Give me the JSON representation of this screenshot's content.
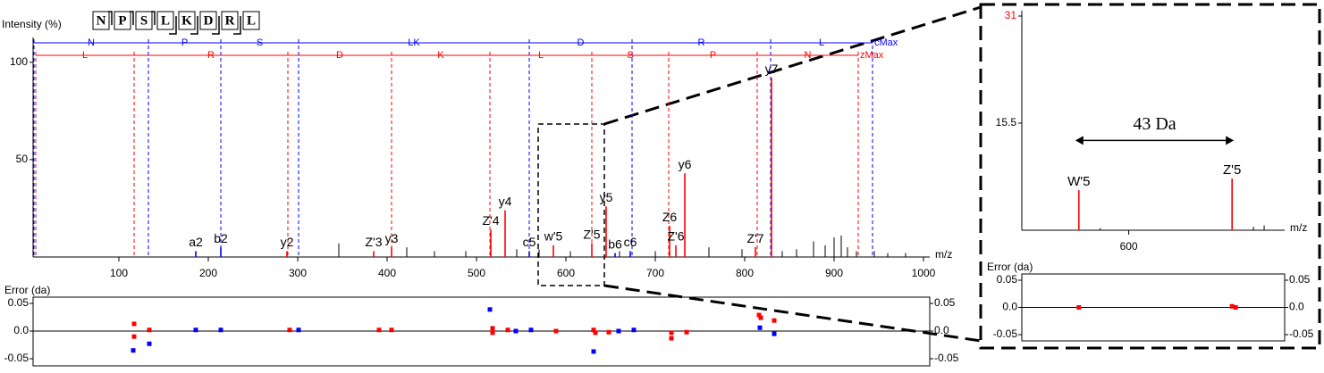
{
  "sequence": [
    "N",
    "P",
    "S",
    "L",
    "K",
    "D",
    "R",
    "L"
  ],
  "chart_data": [
    {
      "type": "stem",
      "y_label": "Intensity (%)",
      "x_label": "m/z",
      "xlim": [
        4,
        1004
      ],
      "ylim": [
        0,
        110
      ],
      "xticks": [
        100,
        200,
        300,
        400,
        500,
        600,
        700,
        800,
        900,
        1000
      ],
      "yticks": [
        50,
        100
      ],
      "x": [
        186,
        214,
        288,
        385,
        405,
        516,
        532,
        559,
        586,
        629,
        645,
        655,
        672,
        716,
        723,
        733,
        812,
        830,
        346,
        422,
        453,
        488,
        545,
        570,
        605,
        660,
        700,
        760,
        797,
        842,
        858,
        877,
        890,
        900,
        908,
        915,
        925,
        945,
        960,
        980
      ],
      "values": [
        3,
        5,
        3,
        3,
        5,
        14,
        24,
        3,
        6,
        7,
        26,
        2,
        3,
        16,
        6,
        43,
        5,
        92,
        7,
        5,
        3,
        3,
        4,
        4,
        3,
        3,
        3,
        5,
        4,
        3,
        4,
        8,
        6,
        10,
        11,
        5,
        3,
        3,
        2,
        2
      ],
      "labels": [
        "a2",
        "b2",
        "y2",
        "Z'3",
        "y3",
        "Z'4",
        "y4",
        "c5",
        "w'5",
        "Z'5",
        "y5",
        "b6",
        "c6",
        "Z6",
        "Z'6",
        "y6",
        "Z'7",
        "y7",
        null,
        null,
        null,
        null,
        null,
        null,
        null,
        null,
        null,
        null,
        null,
        null,
        null,
        null,
        null,
        null,
        null,
        null,
        null,
        null,
        null,
        null
      ],
      "colors": [
        "#0000ff",
        "#0000ff",
        "#ff0000",
        "#ff0000",
        "#ff0000",
        "#ff0000",
        "#ff0000",
        "#0000ff",
        "#ff0000",
        "#ff0000",
        "#ff0000",
        "#0000ff",
        "#0000ff",
        "#ff0000",
        "#ff0000",
        "#ff0000",
        "#ff0000",
        "#ff0000",
        "#000000",
        "#000000",
        "#000000",
        "#000000",
        "#000000",
        "#000000",
        "#000000",
        "#000000",
        "#000000",
        "#000000",
        "#000000",
        "#000000",
        "#000000",
        "#000000",
        "#000000",
        "#000000",
        "#000000",
        "#000000",
        "#000000",
        "#000000",
        "#000000",
        "#000000"
      ],
      "ladders": [
        {
          "color": "#0000ff",
          "cuts": [
            5,
            133,
            214,
            301,
            559,
            674,
            829,
            943
          ],
          "labels": [
            "N",
            "P",
            "S",
            "LK",
            "D",
            "R",
            "L",
            "cMax"
          ]
        },
        {
          "color": "#ff0000",
          "cuts": [
            7,
            117,
            289,
            405,
            515,
            629,
            715,
            814,
            927
          ],
          "labels": [
            "L",
            "R",
            "D",
            "K",
            "L",
            "S",
            "P",
            "N",
            "zMax"
          ]
        }
      ]
    },
    {
      "type": "scatter",
      "y_label": "Error (da)",
      "xlim": [
        4,
        1004
      ],
      "ylim": [
        -0.05,
        0.05
      ],
      "yticks": [
        -0.05,
        {
          "value": 0,
          "label": "0.0"
        },
        0.05
      ],
      "series": [
        {
          "color": "#0000ff",
          "x": [
            116,
            134,
            186,
            214,
            301,
            515,
            544,
            561,
            631,
            659,
            676,
            817,
            833
          ],
          "values": [
            -0.035,
            -0.023,
            0.002,
            0.002,
            0.002,
            0.039,
            0,
            0.002,
            -0.037,
            0,
            0.002,
            0.006,
            -0.005
          ]
        },
        {
          "color": "#ff0000",
          "x": [
            117,
            117,
            134,
            291,
            391,
            405,
            518,
            518,
            535,
            589,
            631,
            633,
            648,
            718,
            718,
            735,
            816,
            818,
            833
          ],
          "values": [
            0.013,
            -0.01,
            0.002,
            0.002,
            0.002,
            0.002,
            0.005,
            -0.003,
            0.002,
            0,
            0.002,
            -0.003,
            -0.002,
            -0.003,
            -0.013,
            -0.002,
            0.029,
            0.024,
            0.019
          ]
        }
      ]
    },
    {
      "type": "stem",
      "x_label": "m/z",
      "xlim": [
        570,
        642
      ],
      "ylim": [
        0,
        31
      ],
      "xticks": [
        600
      ],
      "yticks": [
        15.5,
        31
      ],
      "ytick_colors": [
        "#000000",
        "#ff0000"
      ],
      "x": [
        586,
        629,
        592,
        635,
        638
      ],
      "values": [
        5.8,
        7.5,
        0.3,
        0.5,
        0.7
      ],
      "labels": [
        "W'5",
        "Z'5",
        null,
        null,
        null
      ],
      "colors": [
        "#ff0000",
        "#ff0000",
        "#000000",
        "#000000",
        "#000000"
      ],
      "annotations": [
        {
          "text": "43 Da",
          "x": [
            585,
            629.5
          ],
          "y": 13
        }
      ]
    },
    {
      "type": "scatter",
      "y_label": "Error (da)",
      "xlim": [
        570,
        642
      ],
      "ylim": [
        -0.05,
        0.05
      ],
      "yticks": [
        -0.05,
        {
          "value": 0,
          "label": "0.0"
        },
        0.05
      ],
      "series": [
        {
          "color": "#ff0000",
          "x": [
            586,
            629,
            630
          ],
          "values": [
            0,
            0.002,
            0
          ]
        }
      ]
    }
  ]
}
